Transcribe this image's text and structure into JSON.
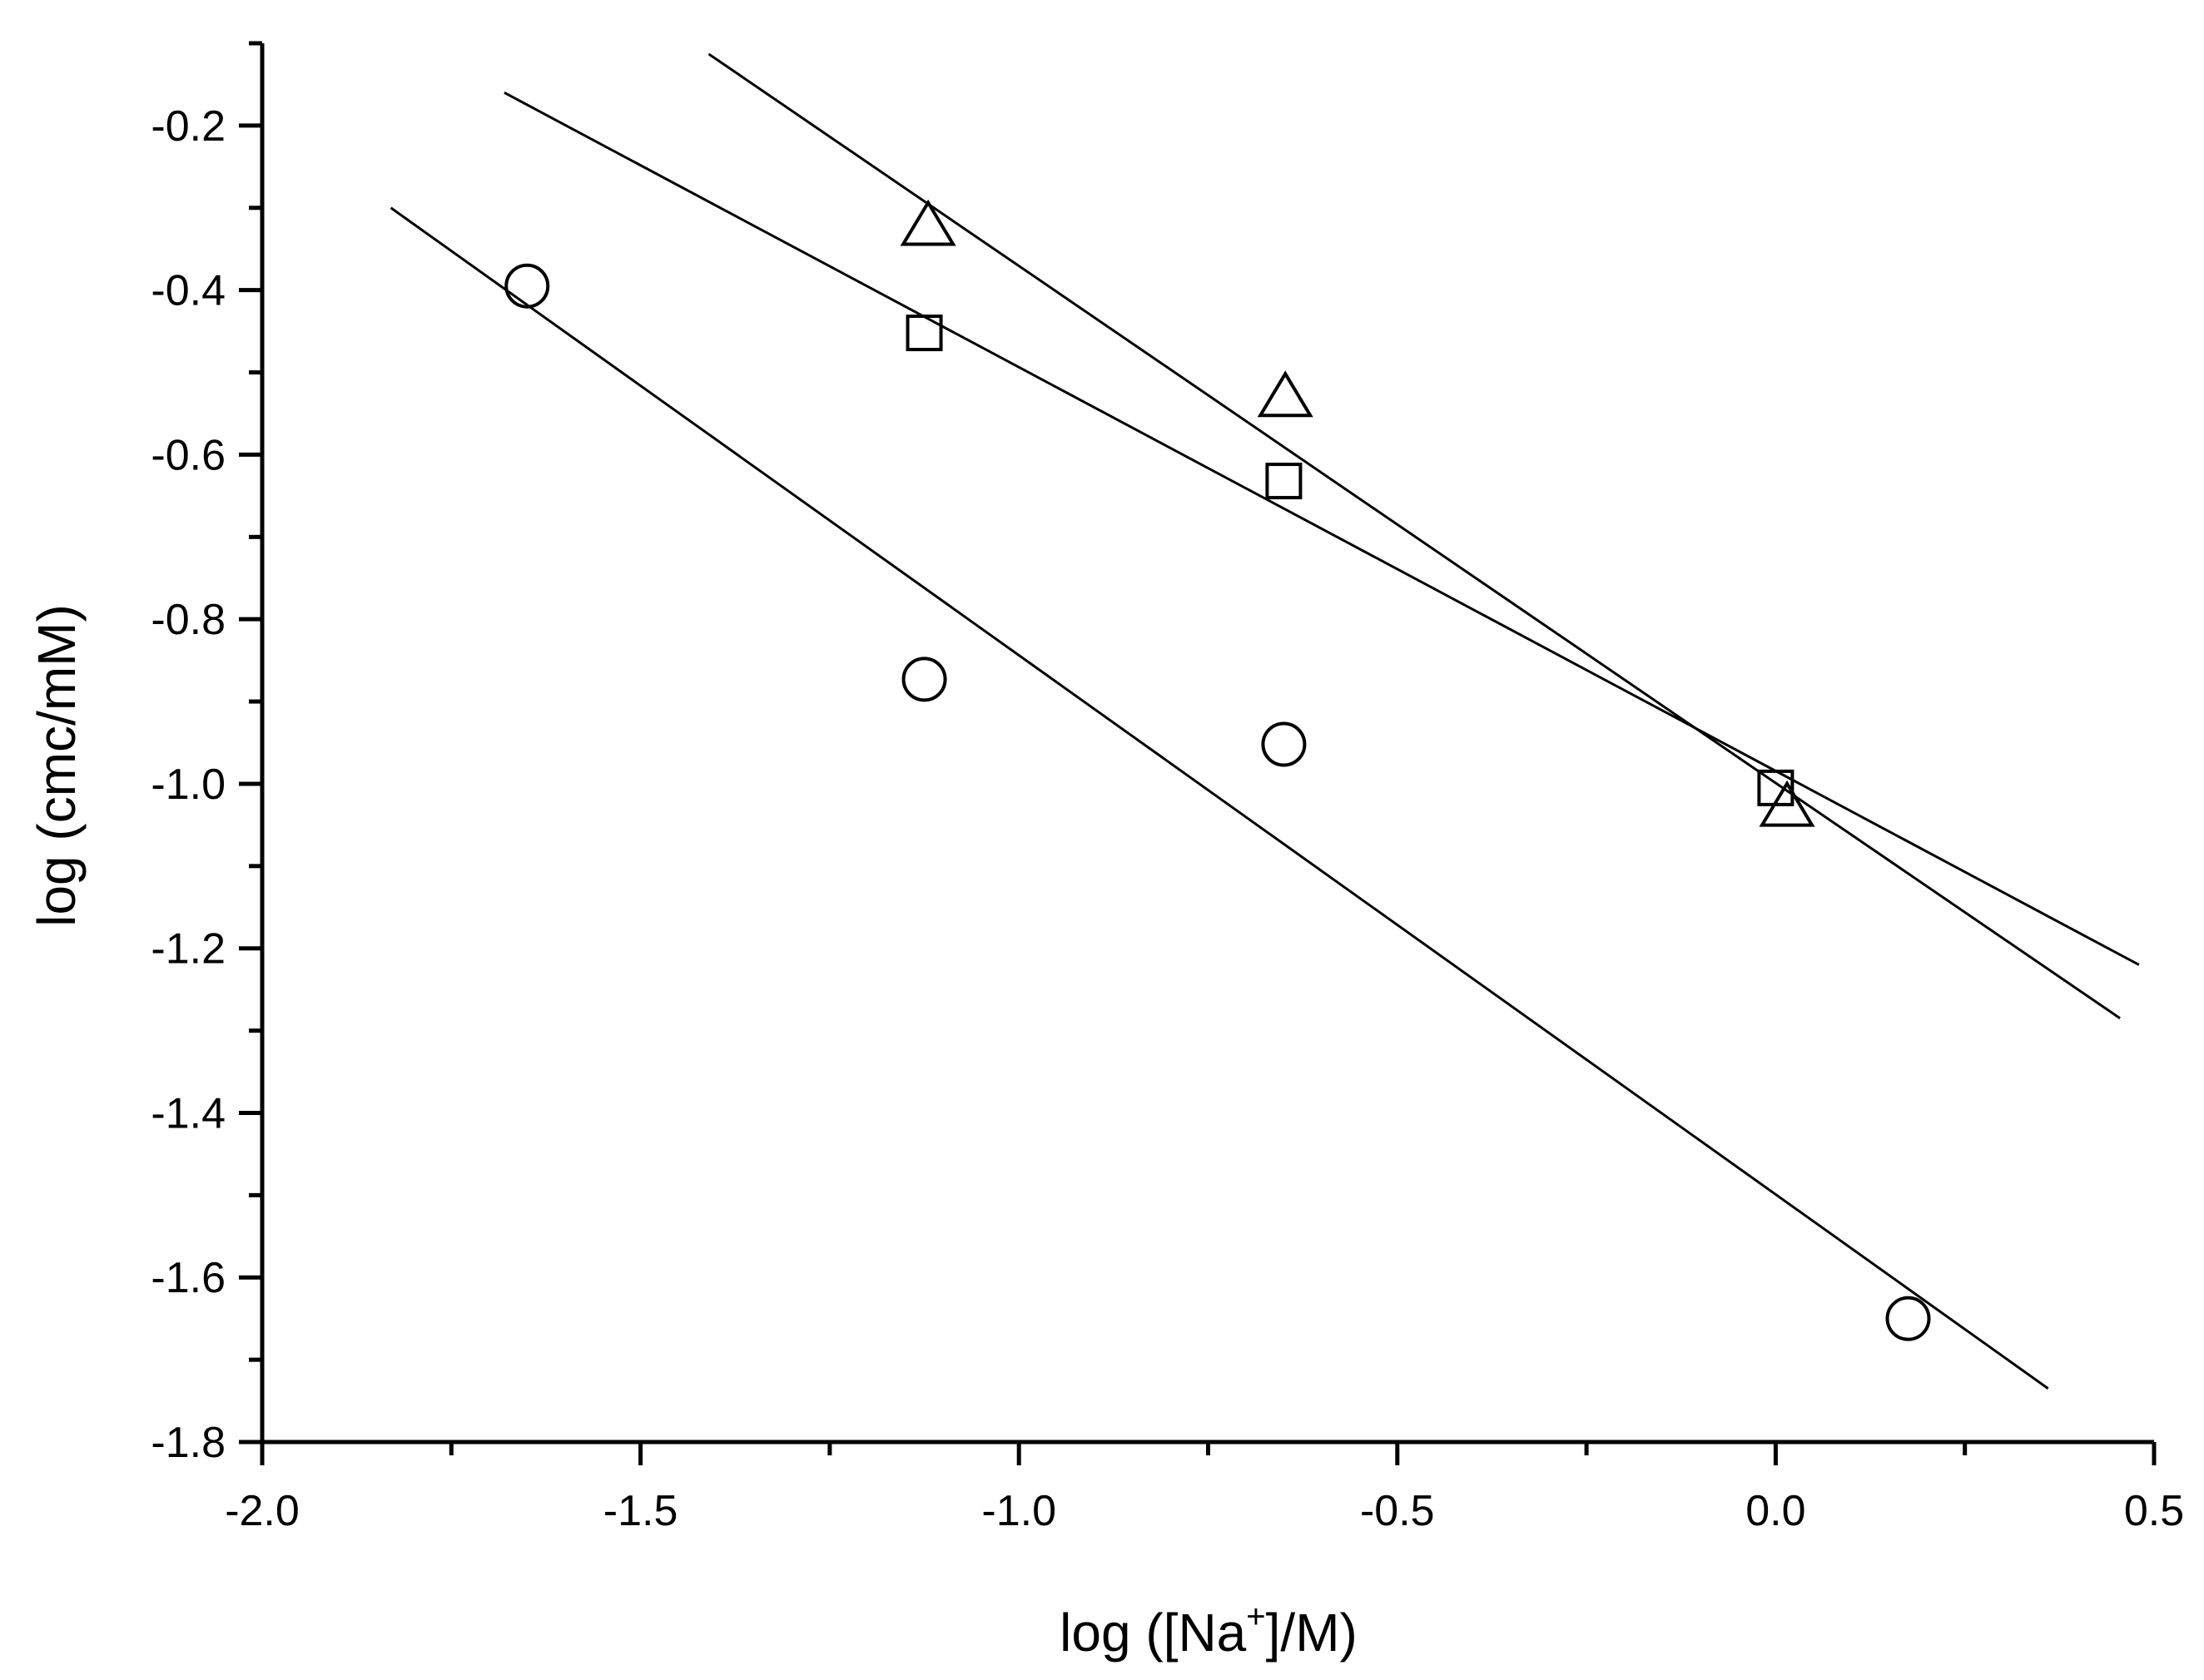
{
  "chart_data": {
    "type": "scatter",
    "title": "",
    "xlabel": {
      "prefix": "log ([Na",
      "superscript": "+",
      "suffix": "]/M)"
    },
    "ylabel": "log (cmc/mM)",
    "xlim": [
      -2.0,
      0.5
    ],
    "ylim": [
      -1.8,
      -0.1
    ],
    "x_major_ticks": [
      -2.0,
      -1.5,
      -1.0,
      -0.5,
      0.0,
      0.5
    ],
    "x_tick_labels": [
      "-2.0",
      "-1.5",
      "-1.0",
      "-0.5",
      "0.0",
      "0.5"
    ],
    "x_minor_ticks": [
      -1.75,
      -1.25,
      -0.75,
      -0.25,
      0.25
    ],
    "y_major_ticks": [
      -1.8,
      -1.6,
      -1.4,
      -1.2,
      -1.0,
      -0.8,
      -0.6,
      -0.4,
      -0.2
    ],
    "y_tick_labels": [
      "-1.8",
      "-1.6",
      "-1.4",
      "-1.2",
      "-1.0",
      "-0.8",
      "-0.6",
      "-0.4",
      "-0.2"
    ],
    "y_minor_ticks": [
      -1.7,
      -1.5,
      -1.3,
      -1.1,
      -0.9,
      -0.7,
      -0.5,
      -0.3,
      -0.1
    ],
    "grid": false,
    "series": [
      {
        "name": "circles",
        "marker": "circle",
        "points": [
          [
            -1.65,
            -0.395
          ],
          [
            -1.125,
            -0.873
          ],
          [
            -0.65,
            -0.952
          ],
          [
            0.175,
            -1.65
          ]
        ],
        "fit_line": {
          "x": [
            -1.83,
            0.36
          ],
          "y": [
            -0.3,
            -1.735
          ]
        }
      },
      {
        "name": "squares",
        "marker": "square",
        "points": [
          [
            -1.125,
            -0.452
          ],
          [
            -0.65,
            -0.632
          ],
          [
            0.0,
            -1.005
          ]
        ],
        "fit_line": {
          "x": [
            -1.68,
            0.48
          ],
          "y": [
            -0.16,
            -1.22
          ]
        }
      },
      {
        "name": "triangles",
        "marker": "triangle",
        "points": [
          [
            -1.12,
            -0.322
          ],
          [
            -0.648,
            -0.53
          ],
          [
            0.015,
            -1.028
          ]
        ],
        "fit_line": {
          "x": [
            -1.41,
            0.455
          ],
          "y": [
            -0.113,
            -1.285
          ]
        }
      }
    ]
  }
}
